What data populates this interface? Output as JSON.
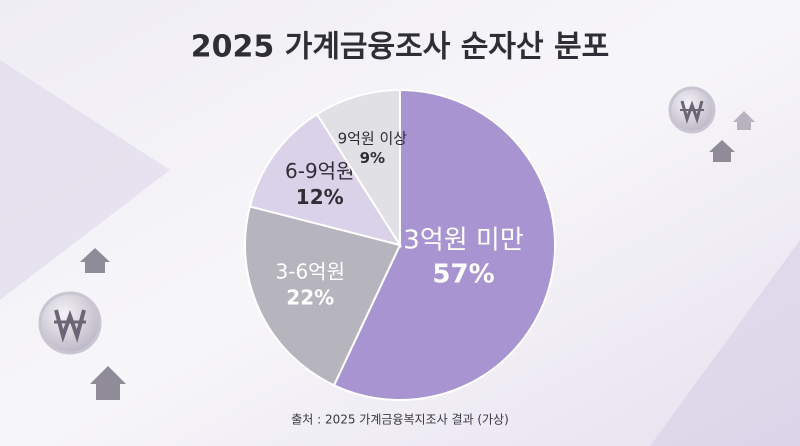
{
  "chart_data": {
    "type": "pie",
    "title": "2025 가계금융조사 순자산 분포",
    "categories": [
      "3억원 미만",
      "3-6억원",
      "6-9억원",
      "9억원 이상"
    ],
    "values": [
      57,
      22,
      12,
      9
    ],
    "value_labels": [
      "57%",
      "22%",
      "12%",
      "9%"
    ],
    "colors": [
      "#a794d0",
      "#b6b4bc",
      "#dad2e8",
      "#e1e0e4"
    ],
    "source": "출처 : 2025 가계금융복지조사 결과 (가상)"
  }
}
